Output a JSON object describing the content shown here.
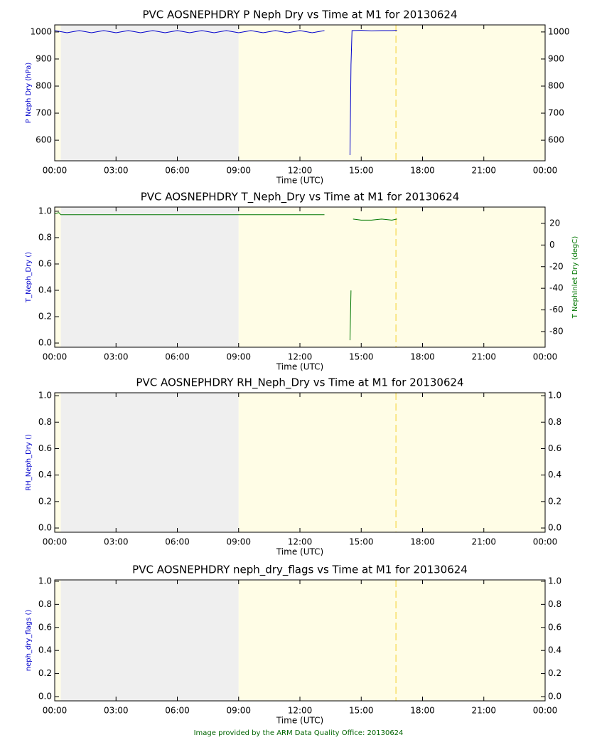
{
  "chart_data": [
    {
      "type": "line",
      "title": "PVC AOSNEPHDRY P Neph Dry vs Time at M1 for 20130624",
      "xlabel": "Time (UTC)",
      "ylabel": "P Neph Dry (hPa)",
      "ylabel_color": "#0000cc",
      "xlim": [
        0,
        24
      ],
      "xticks": [
        {
          "value": 0,
          "label": "00:00"
        },
        {
          "value": 3,
          "label": "03:00"
        },
        {
          "value": 6,
          "label": "06:00"
        },
        {
          "value": 9,
          "label": "09:00"
        },
        {
          "value": 12,
          "label": "12:00"
        },
        {
          "value": 15,
          "label": "15:00"
        },
        {
          "value": 18,
          "label": "18:00"
        },
        {
          "value": 21,
          "label": "21:00"
        },
        {
          "value": 24,
          "label": "00:00"
        }
      ],
      "ylim": [
        524,
        1026
      ],
      "yticks": [
        600,
        700,
        800,
        900,
        1000
      ],
      "mirror_y": true,
      "shading": [
        {
          "from": 0,
          "to": 0.3,
          "color": "#fffde6"
        },
        {
          "from": 0.3,
          "to": 9,
          "color": "#efefef"
        },
        {
          "from": 9,
          "to": 24,
          "color": "#fffde6"
        }
      ],
      "marker_line": {
        "x": 16.7,
        "color": "#f5d84a"
      },
      "series": [
        {
          "color": "#0000cc",
          "axis": "y",
          "x": [
            0,
            0.6,
            1.2,
            1.8,
            2.4,
            3.0,
            3.6,
            4.2,
            4.8,
            5.4,
            6.0,
            6.6,
            7.2,
            7.8,
            8.4,
            9.0,
            9.6,
            10.2,
            10.8,
            11.4,
            12.0,
            12.6,
            13.2,
            13.8,
            14.45,
            14.5,
            14.55,
            15.0,
            15.5,
            16.0,
            16.5,
            16.75
          ],
          "values": [
            1005,
            997,
            1005,
            997,
            1005,
            997,
            1005,
            997,
            1005,
            997,
            1005,
            997,
            1005,
            997,
            1005,
            997,
            1005,
            997,
            1005,
            997,
            1005,
            997,
            1005,
            null,
            545,
            880,
            1005,
            1006,
            1004,
            1005,
            1005,
            1006
          ]
        }
      ]
    },
    {
      "type": "line",
      "title": "PVC AOSNEPHDRY T_Neph_Dry vs Time at M1 for 20130624",
      "xlabel": "Time (UTC)",
      "ylabel": "T_Neph_Dry ()",
      "ylabel_color": "#0000cc",
      "y2label": "T NephInlet Dry (degC)",
      "y2label_color": "#007700",
      "xlim": [
        0,
        24
      ],
      "xticks": [
        {
          "value": 0,
          "label": "00:00"
        },
        {
          "value": 3,
          "label": "03:00"
        },
        {
          "value": 6,
          "label": "06:00"
        },
        {
          "value": 9,
          "label": "09:00"
        },
        {
          "value": 12,
          "label": "12:00"
        },
        {
          "value": 15,
          "label": "15:00"
        },
        {
          "value": 18,
          "label": "18:00"
        },
        {
          "value": 21,
          "label": "21:00"
        },
        {
          "value": 24,
          "label": "00:00"
        }
      ],
      "ylim": [
        -0.032,
        1.032
      ],
      "yticks": [
        {
          "value": 0,
          "label": "0.0"
        },
        0.2,
        0.4,
        0.6,
        0.8,
        {
          "value": 1,
          "label": "1.0"
        }
      ],
      "y2lim": [
        -94.5,
        35.1
      ],
      "y2ticks": [
        -80,
        -60,
        -40,
        -20,
        0,
        20
      ],
      "shading": [
        {
          "from": 0,
          "to": 0.3,
          "color": "#fffde6"
        },
        {
          "from": 0.3,
          "to": 9,
          "color": "#efefef"
        },
        {
          "from": 9,
          "to": 24,
          "color": "#fffde6"
        }
      ],
      "marker_line": {
        "x": 16.7,
        "color": "#f5d84a"
      },
      "series": [
        {
          "color": "#007700",
          "axis": "y2",
          "x": [
            0,
            0.2,
            0.3,
            4,
            9,
            13.2,
            13.8,
            14.45,
            14.5,
            14.55,
            14.6,
            15,
            15.5,
            16,
            16.5,
            16.75
          ],
          "values": [
            29,
            30,
            28,
            28,
            28,
            28,
            null,
            -88,
            -42,
            null,
            24,
            23,
            23,
            24,
            23,
            24
          ]
        }
      ]
    },
    {
      "type": "line",
      "title": "PVC AOSNEPHDRY RH_Neph_Dry vs Time at M1 for 20130624",
      "xlabel": "Time (UTC)",
      "ylabel": "RH_Neph_Dry ()",
      "ylabel_color": "#0000cc",
      "xlim": [
        0,
        24
      ],
      "xticks": [
        {
          "value": 0,
          "label": "00:00"
        },
        {
          "value": 3,
          "label": "03:00"
        },
        {
          "value": 6,
          "label": "06:00"
        },
        {
          "value": 9,
          "label": "09:00"
        },
        {
          "value": 12,
          "label": "12:00"
        },
        {
          "value": 15,
          "label": "15:00"
        },
        {
          "value": 18,
          "label": "18:00"
        },
        {
          "value": 21,
          "label": "21:00"
        },
        {
          "value": 24,
          "label": "00:00"
        }
      ],
      "ylim": [
        -0.032,
        1.022
      ],
      "yticks": [
        {
          "value": 0,
          "label": "0.0"
        },
        0.2,
        0.4,
        0.6,
        0.8,
        {
          "value": 1,
          "label": "1.0"
        }
      ],
      "mirror_y": true,
      "shading": [
        {
          "from": 0,
          "to": 0.3,
          "color": "#fffde6"
        },
        {
          "from": 0.3,
          "to": 9,
          "color": "#efefef"
        },
        {
          "from": 9,
          "to": 24,
          "color": "#fffde6"
        }
      ],
      "marker_line": {
        "x": 16.7,
        "color": "#f5d84a"
      }
    },
    {
      "type": "line",
      "title": "PVC AOSNEPHDRY neph_dry_flags vs Time at M1 for 20130624",
      "xlabel": "Time (UTC)",
      "ylabel": "neph_dry_flags ()",
      "ylabel_color": "#0000cc",
      "xlim": [
        0,
        24
      ],
      "xticks": [
        {
          "value": 0,
          "label": "00:00"
        },
        {
          "value": 3,
          "label": "03:00"
        },
        {
          "value": 6,
          "label": "06:00"
        },
        {
          "value": 9,
          "label": "09:00"
        },
        {
          "value": 12,
          "label": "12:00"
        },
        {
          "value": 15,
          "label": "15:00"
        },
        {
          "value": 18,
          "label": "18:00"
        },
        {
          "value": 21,
          "label": "21:00"
        },
        {
          "value": 24,
          "label": "00:00"
        }
      ],
      "ylim": [
        -0.037,
        1.012
      ],
      "yticks": [
        {
          "value": 0,
          "label": "0.0"
        },
        0.2,
        0.4,
        0.6,
        0.8,
        {
          "value": 1,
          "label": "1.0"
        }
      ],
      "mirror_y": true,
      "shading": [
        {
          "from": 0,
          "to": 0.3,
          "color": "#fffde6"
        },
        {
          "from": 0.3,
          "to": 9,
          "color": "#efefef"
        },
        {
          "from": 9,
          "to": 24,
          "color": "#fffde6"
        }
      ],
      "marker_line": {
        "x": 16.7,
        "color": "#f5d84a"
      }
    }
  ],
  "footer": "Image provided by the ARM Data Quality Office: 20130624"
}
